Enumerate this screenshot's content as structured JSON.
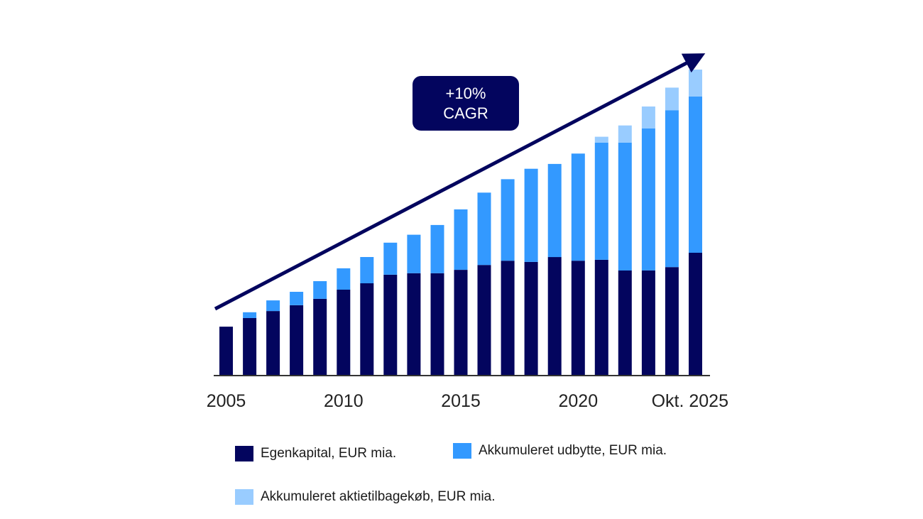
{
  "chart_data": {
    "type": "bar",
    "stacked": true,
    "title": "",
    "xlabel": "",
    "ylabel": "",
    "grid": false,
    "legend_position": "bottom",
    "categories": [
      "2005",
      "2006",
      "2007",
      "2008",
      "2009",
      "2010",
      "2011",
      "2012",
      "2013",
      "2014",
      "2015",
      "2016",
      "2017",
      "2018",
      "2019",
      "2020",
      "2021",
      "2022",
      "2023",
      "2024",
      "Okt. 2025"
    ],
    "tick_labels": [
      {
        "index": 0,
        "label": "2005"
      },
      {
        "index": 5,
        "label": "2010"
      },
      {
        "index": 10,
        "label": "2015"
      },
      {
        "index": 15,
        "label": "2020"
      },
      {
        "index": 20,
        "label": "Okt. 2025"
      }
    ],
    "series": [
      {
        "name": "Egenkapital, EUR mia.",
        "color": "#03055e",
        "values": [
          15.8,
          18.6,
          20.9,
          22.8,
          24.9,
          27.9,
          30.0,
          32.8,
          33.3,
          33.3,
          34.4,
          36.0,
          37.4,
          37.0,
          38.6,
          37.4,
          37.7,
          34.2,
          34.2,
          35.3,
          40.0
        ]
      },
      {
        "name": "Akkumuleret udbytte, EUR mia.",
        "color": "#3399ff",
        "values": [
          0,
          1.9,
          3.5,
          4.4,
          5.8,
          7.0,
          8.6,
          10.5,
          12.6,
          15.8,
          19.8,
          23.7,
          26.7,
          30.5,
          30.5,
          35.1,
          38.4,
          41.9,
          46.5,
          51.4,
          51.2
        ]
      },
      {
        "name": "Akkumuleret aktietilbagekøb, EUR mia.",
        "color": "#99ccff",
        "values": [
          0,
          0,
          0,
          0,
          0,
          0,
          0,
          0,
          0,
          0,
          0,
          0,
          0,
          0,
          0,
          0,
          1.9,
          5.6,
          7.2,
          7.4,
          8.8
        ]
      }
    ],
    "ylim": [
      0,
      105
    ],
    "annotation": {
      "line1": "+10%",
      "line2": "CAGR",
      "type": "trend-arrow"
    }
  }
}
